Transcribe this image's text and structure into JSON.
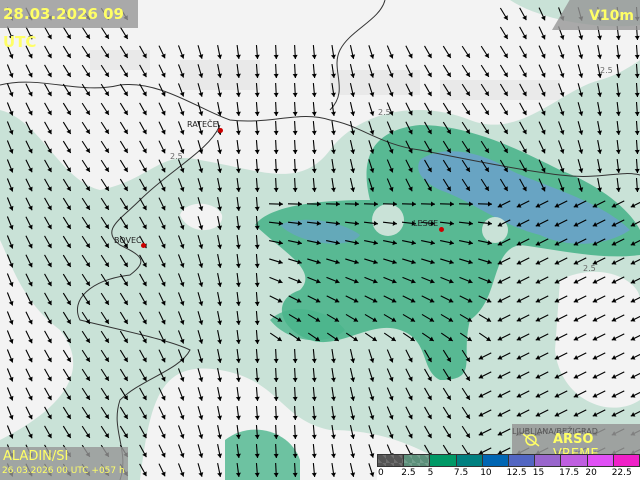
{
  "header": {
    "datetime": "28.03.2026 09 UTC",
    "variable": "V10m"
  },
  "model": {
    "name": "ALADIN/SI",
    "run": "26.03.2026 00 UTC +057 h"
  },
  "brand": {
    "station_overlay": "LJUBLJANA/BEŽIGRAD",
    "name_bold": "ARSO",
    "name_rest": " VREME",
    "icon": "arso-logo-icon"
  },
  "stations": [
    {
      "name": "RATEČE"
    },
    {
      "name": "BOVEC"
    },
    {
      "name": "LESCE"
    }
  ],
  "contour_labels": [
    "2.5",
    "2.5",
    "2.5",
    "2.5"
  ],
  "legend": {
    "unit_values": [
      "0",
      "2.5",
      "5",
      "7.5",
      "10",
      "12.5",
      "15",
      "17.5",
      "20",
      "22.5"
    ],
    "colors": [
      "#555555",
      "#5c8f7a",
      "#009966",
      "#008080",
      "#0066b3",
      "#5266c2",
      "#9966cc",
      "#bf5fe0",
      "#e050f5",
      "#f020c8"
    ]
  },
  "colors": {
    "title_text": "#ffff66",
    "station_dot": "#cc0000",
    "land_light": "#c9e2d7",
    "wind_5": "#4bb58c",
    "wind_75": "#5a9fcf"
  }
}
